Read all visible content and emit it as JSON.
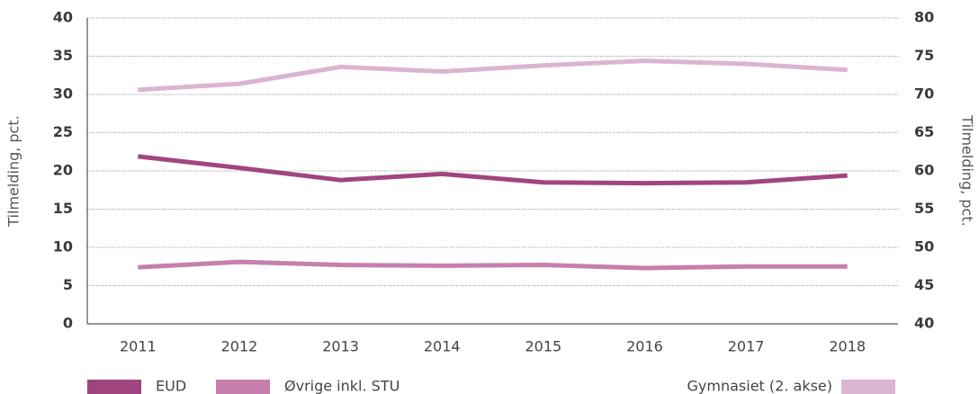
{
  "chart_data": {
    "type": "line",
    "categories": [
      "2011",
      "2012",
      "2013",
      "2014",
      "2015",
      "2016",
      "2017",
      "2018"
    ],
    "series": [
      {
        "name": "EUD",
        "color": "#a0457f",
        "values": [
          21.9,
          20.4,
          18.8,
          19.6,
          18.5,
          18.4,
          18.5,
          19.4
        ]
      },
      {
        "name": "Øvrige inkl. STU",
        "color": "#c77fab",
        "values": [
          7.4,
          8.1,
          7.7,
          7.6,
          7.7,
          7.3,
          7.5,
          7.5
        ]
      },
      {
        "name": "Gymnasiet (2. akse)",
        "color": "#dbb5cf",
        "axis": "y2",
        "values": [
          70.6,
          71.4,
          73.6,
          73.0,
          73.8,
          74.4,
          74.0,
          73.2
        ]
      }
    ],
    "ylabel": "Tilmelding, pct.",
    "y2label": "Tilmelding, pct.",
    "ylim": [
      0,
      40
    ],
    "yticks": [
      0,
      5,
      10,
      15,
      20,
      25,
      30,
      35,
      40
    ],
    "y2lim": [
      40,
      80
    ],
    "y2ticks": [
      40,
      45,
      50,
      55,
      60,
      65,
      70,
      75,
      80
    ],
    "grid": true,
    "legend": "bottom"
  }
}
